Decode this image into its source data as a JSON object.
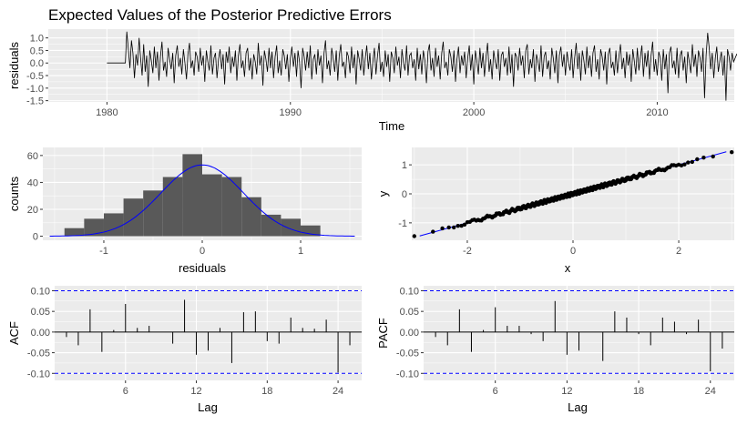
{
  "title": "Expected Values of the Posterior Predictive Errors",
  "colors": {
    "panel_bg": "#ebebeb",
    "grid": "#ffffff",
    "bar": "#595959",
    "curve": "#0000ff",
    "line": "#000000",
    "band": "#0000ff"
  },
  "chart_data": [
    {
      "id": "residuals_ts",
      "type": "line",
      "xlabel": "Time",
      "ylabel": "residuals",
      "xlim": [
        1976.8,
        2014.2
      ],
      "ylim": [
        -1.55,
        1.35
      ],
      "x_ticks": [
        1980,
        1990,
        2000,
        2010
      ],
      "x_tick_labels": [
        "1980",
        "1990",
        "2000",
        "2010"
      ],
      "y_ticks": [
        -1.5,
        -1.0,
        -0.5,
        0.0,
        0.5,
        1.0
      ],
      "y_tick_labels": [
        "-1.5",
        "-1.0",
        "-0.5",
        "0.0",
        "0.5",
        "1.0"
      ],
      "series": [
        {
          "x_start": 1980.0,
          "x_step": 0.08333,
          "flat_until": 1981.0,
          "flat_value": 0.0,
          "values_note": "",
          "values": [
            0.0,
            0.0,
            0.0,
            0.0,
            0.0,
            0.0,
            0.0,
            0.0,
            0.0,
            0.0,
            0.0,
            0.0,
            0.0,
            1.25,
            0.55,
            -0.2,
            0.9,
            0.4,
            -0.6,
            0.35,
            -0.1,
            1.0,
            0.2,
            -0.5,
            0.75,
            -0.35,
            0.3,
            -0.95,
            0.5,
            0.1,
            -0.4,
            0.65,
            -0.2,
            0.45,
            -0.7,
            0.25,
            0.85,
            -0.3,
            0.05,
            -0.55,
            0.6,
            0.15,
            -0.25,
            0.4,
            -0.8,
            0.3,
            0.7,
            -0.15,
            0.2,
            -0.45,
            0.55,
            0.0,
            -0.65,
            0.35,
            0.8,
            -0.2,
            0.1,
            -0.5,
            0.45,
            0.25,
            -0.35,
            0.6,
            -0.1,
            0.3,
            -0.75,
            0.5,
            0.05,
            -0.3,
            0.7,
            -0.45,
            0.2,
            0.4,
            -0.6,
            0.15,
            0.55,
            -0.25,
            0.35,
            -0.85,
            0.45,
            0.0,
            0.65,
            -0.4,
            0.25,
            -0.15,
            0.5,
            -0.7,
            0.3,
            0.75,
            -0.2,
            0.1,
            -0.55,
            0.4,
            0.6,
            -0.3,
            0.2,
            -0.65,
            0.35,
            0.05,
            -0.45,
            0.8,
            -0.1,
            0.3,
            -0.9,
            0.5,
            0.15,
            -0.35,
            0.6,
            -0.2,
            0.45,
            -0.6,
            0.25,
            0.7,
            -0.4,
            0.1,
            -0.5,
            0.55,
            0.3,
            -0.25,
            0.35,
            -0.75,
            0.2,
            0.65,
            -0.15,
            0.4,
            -0.55,
            0.5,
            0.05,
            -1.0,
            0.6,
            0.25,
            -0.3,
            0.45,
            -0.2,
            0.7,
            -0.65,
            0.15,
            0.35,
            -0.45,
            0.55,
            -0.1,
            0.3,
            -0.8,
            0.4,
            0.9,
            -0.25,
            0.1,
            -0.5,
            0.6,
            0.2,
            -0.35,
            0.5,
            -0.7,
            0.3,
            0.75,
            -0.15,
            0.05,
            -0.6,
            0.45,
            0.25,
            -0.4,
            0.65,
            -0.2,
            0.35,
            -0.85,
            0.5,
            0.15,
            -0.3,
            0.55,
            -0.5,
            0.2,
            0.7,
            -0.25,
            0.4,
            -0.65,
            0.1,
            0.6,
            -0.45,
            0.3,
            0.8,
            -0.35,
            0.05,
            -0.55,
            0.5,
            -0.15,
            0.35,
            -0.75,
            0.45,
            0.2,
            -0.4,
            0.65,
            -0.1,
            0.25,
            -0.6,
            0.55,
            0.0,
            -0.3,
            0.7,
            -0.5,
            0.3,
            0.4,
            -0.2,
            0.15,
            -0.7,
            0.6,
            -0.25,
            0.35,
            -0.45,
            0.5,
            0.1,
            -0.8,
            0.45,
            0.75,
            -0.3,
            0.2,
            -0.55,
            0.6,
            -0.15,
            0.3,
            -0.65,
            0.4,
            0.85,
            -0.2,
            0.05,
            -0.5,
            0.55,
            0.25,
            -0.35,
            0.5,
            -0.75,
            0.15,
            0.65,
            -0.4,
            0.3,
            -0.1,
            0.45,
            -0.6,
            0.2,
            0.7,
            -0.3,
            0.35,
            -0.85,
            0.5,
            0.1,
            -0.45,
            0.6,
            -0.2,
            0.4,
            -0.55,
            0.25,
            0.8,
            -0.35,
            0.15,
            -0.65,
            0.5,
            0.05,
            -0.25,
            0.55,
            -0.7,
            0.3,
            0.45,
            -0.15,
            0.2,
            -0.5,
            0.65,
            -0.4,
            0.35,
            -0.95,
            0.4,
            0.25,
            -0.3,
            0.6,
            -0.1,
            0.3,
            -0.6,
            0.5,
            0.75,
            -0.45,
            0.15,
            -0.2,
            0.55,
            -0.75,
            0.35,
            0.05,
            -0.35,
            0.7,
            -0.55,
            0.25,
            0.45,
            -0.25,
            0.1,
            -0.65,
            0.6,
            0.2,
            -0.4,
            0.5,
            -0.8,
            0.3,
            0.65,
            -0.15,
            0.35,
            -0.5,
            0.45,
            0.0,
            -0.3,
            0.55,
            -0.6,
            0.2,
            0.8,
            -0.25,
            0.4,
            -0.7,
            0.5,
            0.1,
            -0.45,
            0.65,
            -0.2,
            0.3,
            -0.55,
            0.4,
            0.7,
            -0.35,
            0.15,
            -0.65,
            0.55,
            0.25,
            -0.3,
            0.45,
            -0.85,
            0.35,
            0.6,
            -0.2,
            0.05,
            -0.5,
            0.5,
            -0.4,
            0.3,
            0.75,
            -0.25,
            0.2,
            -0.6,
            0.45,
            -0.1,
            0.35,
            -0.75,
            0.55,
            0.1,
            -0.45,
            0.6,
            -0.3,
            0.25,
            0.7,
            -0.55,
            0.4,
            -0.15,
            0.5,
            -0.65,
            0.3,
            0.85,
            -0.35,
            0.15,
            -0.5,
            0.45,
            0.2,
            -0.7,
            0.55,
            -0.25,
            0.35,
            -1.2,
            0.4,
            0.65,
            -0.2,
            0.1,
            -0.45,
            0.6,
            -0.6,
            0.3,
            0.5,
            -0.3,
            0.25,
            -0.8,
            0.45,
            0.05,
            -0.4,
            0.75,
            -0.15,
            0.35,
            -0.55,
            0.5,
            0.2,
            -0.35,
            0.6,
            -1.4,
            0.3,
            1.2,
            0.6,
            -0.25,
            0.4,
            -0.6,
            0.2,
            0.65,
            -0.35,
            0.1,
            0.45,
            -0.5,
            0.3,
            -1.5,
            0.55,
            0.25,
            -0.3,
            0.4,
            0.05,
            0.2,
            0.35,
            0.25,
            0.3
          ]
        }
      ]
    },
    {
      "id": "histogram",
      "type": "bar",
      "xlabel": "residuals",
      "ylabel": "counts",
      "xlim": [
        -1.62,
        1.62
      ],
      "ylim": [
        -3,
        66
      ],
      "x_ticks": [
        -1,
        0,
        1
      ],
      "x_tick_labels": [
        "-1",
        "0",
        "1"
      ],
      "y_ticks": [
        0,
        20,
        40,
        60
      ],
      "y_tick_labels": [
        "0",
        "20",
        "40",
        "60"
      ],
      "bin_edges": [
        -1.4,
        -1.2,
        -1.0,
        -0.8,
        -0.6,
        -0.4,
        -0.2,
        0.0,
        0.2,
        0.4,
        0.6,
        0.8,
        1.0,
        1.2
      ],
      "counts": [
        6,
        13,
        17,
        28,
        34,
        44,
        61,
        46,
        44,
        29,
        16,
        13,
        8
      ],
      "density_curve": {
        "type": "normal",
        "mean": 0.0,
        "sd": 0.42,
        "peak": 53
      }
    },
    {
      "id": "qq",
      "type": "scatter",
      "xlabel": "x",
      "ylabel": "y",
      "xlim": [
        -3.05,
        3.05
      ],
      "ylim": [
        -1.6,
        1.6
      ],
      "x_ticks": [
        -2,
        0,
        2
      ],
      "x_tick_labels": [
        "-2",
        "0",
        "2"
      ],
      "y_ticks": [
        -1,
        0,
        1
      ],
      "y_tick_labels": [
        "-1",
        "0",
        "1"
      ],
      "n_points": 372,
      "sample_sd": 0.5,
      "reference_line": {
        "intercept": 0.0,
        "slope": 0.5
      }
    },
    {
      "id": "acf",
      "type": "bar",
      "xlabel": "Lag",
      "ylabel": "ACF",
      "xlim": [
        0,
        26
      ],
      "ylim": [
        -0.117,
        0.112
      ],
      "x_ticks": [
        6,
        12,
        18,
        24
      ],
      "x_tick_labels": [
        "6",
        "12",
        "18",
        "24"
      ],
      "y_ticks": [
        -0.1,
        -0.05,
        0.0,
        0.05,
        0.1
      ],
      "y_tick_labels": [
        "-0.10",
        "-0.05",
        "0.00",
        "0.05",
        "0.10"
      ],
      "lags": [
        1,
        2,
        3,
        4,
        5,
        6,
        7,
        8,
        9,
        10,
        11,
        12,
        13,
        14,
        15,
        16,
        17,
        18,
        19,
        20,
        21,
        22,
        23,
        24,
        25
      ],
      "values": [
        -0.012,
        -0.032,
        0.055,
        -0.048,
        0.005,
        0.068,
        0.01,
        0.015,
        0.0,
        -0.028,
        0.078,
        -0.055,
        -0.045,
        0.01,
        -0.075,
        0.048,
        0.05,
        -0.022,
        -0.028,
        0.035,
        0.01,
        0.008,
        0.03,
        -0.098,
        -0.032
      ],
      "conf_band": 0.1
    },
    {
      "id": "pacf",
      "type": "bar",
      "xlabel": "Lag",
      "ylabel": "PACF",
      "xlim": [
        0,
        26
      ],
      "ylim": [
        -0.117,
        0.112
      ],
      "x_ticks": [
        6,
        12,
        18,
        24
      ],
      "x_tick_labels": [
        "6",
        "12",
        "18",
        "24"
      ],
      "y_ticks": [
        -0.1,
        -0.05,
        0.0,
        0.05,
        0.1
      ],
      "y_tick_labels": [
        "-0.10",
        "-0.05",
        "0.00",
        "0.05",
        "0.10"
      ],
      "lags": [
        1,
        2,
        3,
        4,
        5,
        6,
        7,
        8,
        9,
        10,
        11,
        12,
        13,
        14,
        15,
        16,
        17,
        18,
        19,
        20,
        21,
        22,
        23,
        24,
        25
      ],
      "values": [
        -0.012,
        -0.032,
        0.055,
        -0.048,
        0.005,
        0.06,
        0.015,
        0.015,
        -0.005,
        -0.022,
        0.075,
        -0.055,
        -0.045,
        0.0,
        -0.07,
        0.05,
        0.035,
        -0.005,
        -0.032,
        0.035,
        0.025,
        -0.005,
        0.03,
        -0.095,
        -0.04
      ],
      "conf_band": 0.1
    }
  ]
}
